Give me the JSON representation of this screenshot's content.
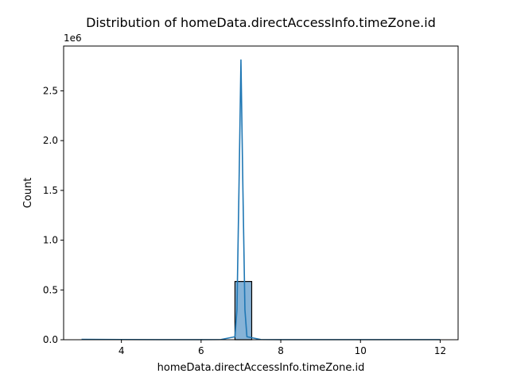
{
  "chart_data": {
    "type": "bar",
    "title": "Distribution of homeData.directAccessInfo.timeZone.id",
    "xlabel": "homeData.directAccessInfo.timeZone.id",
    "ylabel": "Count",
    "y_offset_label": "1e6",
    "xlim": [
      2.55,
      12.45
    ],
    "ylim": [
      0,
      2950000
    ],
    "x_ticks": [
      4,
      6,
      8,
      10,
      12
    ],
    "x_tick_labels": [
      "4",
      "6",
      "8",
      "10",
      "12"
    ],
    "y_ticks": [
      0,
      500000,
      1000000,
      1500000,
      2000000,
      2500000
    ],
    "y_tick_labels": [
      "0.0",
      "0.5",
      "1.0",
      "1.5",
      "2.0",
      "2.5"
    ],
    "histogram": {
      "bins": [
        {
          "x0": 6.85,
          "x1": 7.27,
          "count": 585000
        }
      ],
      "fill_color": "#86b3d7",
      "edge_color": "#000000"
    },
    "kde": {
      "color": "#1f77b4",
      "x": [
        3.0,
        4.0,
        5.0,
        6.0,
        6.5,
        6.85,
        6.9,
        6.95,
        7.0,
        7.05,
        7.1,
        7.15,
        7.5,
        8.0,
        9.0,
        10.0,
        11.0,
        12.0
      ],
      "y": [
        4000,
        2000,
        1000,
        1000,
        2000,
        30000,
        300000,
        1500000,
        2810000,
        1500000,
        300000,
        30000,
        2000,
        1000,
        1000,
        1000,
        1000,
        1000
      ]
    },
    "grid": false,
    "legend": "none"
  }
}
